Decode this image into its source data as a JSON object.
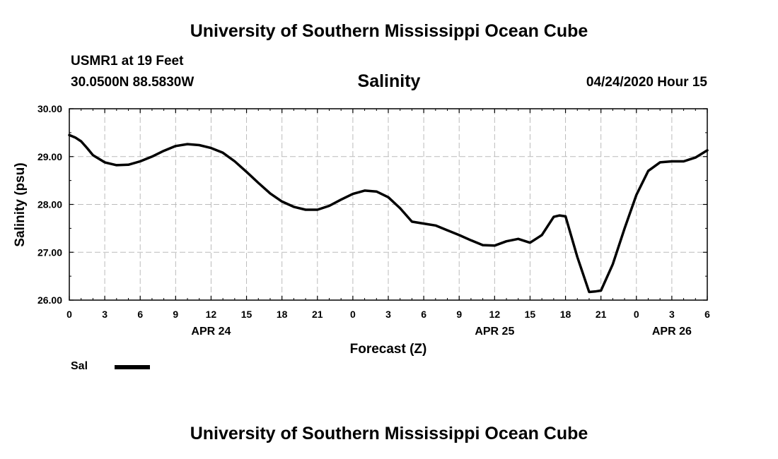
{
  "header": {
    "title": "University of Southern Mississippi Ocean Cube",
    "station": "USMR1 at 19 Feet",
    "coords": "30.0500N 88.5830W",
    "run_time": "04/24/2020 Hour 15"
  },
  "footer": {
    "title": "University of Southern Mississippi Ocean Cube"
  },
  "chart_data": {
    "type": "line",
    "title": "Salinity",
    "xlabel": "Forecast (Z)",
    "ylabel": "Salinity (psu)",
    "x_unit": "hours from 2020-04-24 00Z",
    "xlim": [
      0,
      54
    ],
    "ylim": [
      26.0,
      30.0
    ],
    "grid": true,
    "y_ticks": [
      {
        "value": 26.0,
        "label": "26.00"
      },
      {
        "value": 27.0,
        "label": "27.00"
      },
      {
        "value": 28.0,
        "label": "28.00"
      },
      {
        "value": 29.0,
        "label": "29.00"
      },
      {
        "value": 30.0,
        "label": "30.00"
      }
    ],
    "x_ticks": [
      {
        "value": 0,
        "label": "0"
      },
      {
        "value": 3,
        "label": "3"
      },
      {
        "value": 6,
        "label": "6"
      },
      {
        "value": 9,
        "label": "9"
      },
      {
        "value": 12,
        "label": "12"
      },
      {
        "value": 15,
        "label": "15"
      },
      {
        "value": 18,
        "label": "18"
      },
      {
        "value": 21,
        "label": "21"
      },
      {
        "value": 24,
        "label": "0"
      },
      {
        "value": 27,
        "label": "3"
      },
      {
        "value": 30,
        "label": "6"
      },
      {
        "value": 33,
        "label": "9"
      },
      {
        "value": 36,
        "label": "12"
      },
      {
        "value": 39,
        "label": "15"
      },
      {
        "value": 42,
        "label": "18"
      },
      {
        "value": 45,
        "label": "21"
      },
      {
        "value": 48,
        "label": "0"
      },
      {
        "value": 51,
        "label": "3"
      },
      {
        "value": 54,
        "label": "6"
      }
    ],
    "date_labels": [
      {
        "value": 12,
        "label": "APR 24"
      },
      {
        "value": 36,
        "label": "APR 25"
      },
      {
        "value": 51,
        "label": "APR 26"
      }
    ],
    "legend": [
      {
        "name": "Sal",
        "position": "bottom-left"
      }
    ],
    "series": [
      {
        "name": "Sal",
        "x": [
          0,
          0.5,
          1,
          1.5,
          2,
          3,
          4,
          5,
          6,
          7,
          8,
          9,
          10,
          11,
          12,
          13,
          14,
          15,
          16,
          17,
          18,
          19,
          20,
          21,
          22,
          23,
          24,
          25,
          26,
          27,
          28,
          29,
          30,
          31,
          32,
          33,
          34,
          35,
          36,
          37,
          38,
          39,
          40,
          41,
          41.5,
          42,
          43,
          44,
          44.5,
          45,
          46,
          47,
          48,
          49,
          50,
          51,
          52,
          53,
          54
        ],
        "y": [
          29.45,
          29.4,
          29.32,
          29.18,
          29.03,
          28.88,
          28.82,
          28.83,
          28.9,
          29.0,
          29.12,
          29.22,
          29.26,
          29.24,
          29.18,
          29.08,
          28.9,
          28.68,
          28.45,
          28.23,
          28.06,
          27.95,
          27.89,
          27.89,
          27.97,
          28.1,
          28.22,
          28.29,
          28.27,
          28.15,
          27.92,
          27.64,
          27.6,
          27.56,
          27.46,
          27.36,
          27.25,
          27.15,
          27.14,
          27.23,
          27.28,
          27.2,
          27.36,
          27.74,
          27.77,
          27.75,
          26.9,
          26.17,
          26.18,
          26.2,
          26.75,
          27.5,
          28.2,
          28.7,
          28.88,
          28.9,
          28.9,
          28.98,
          29.13
        ]
      }
    ]
  }
}
